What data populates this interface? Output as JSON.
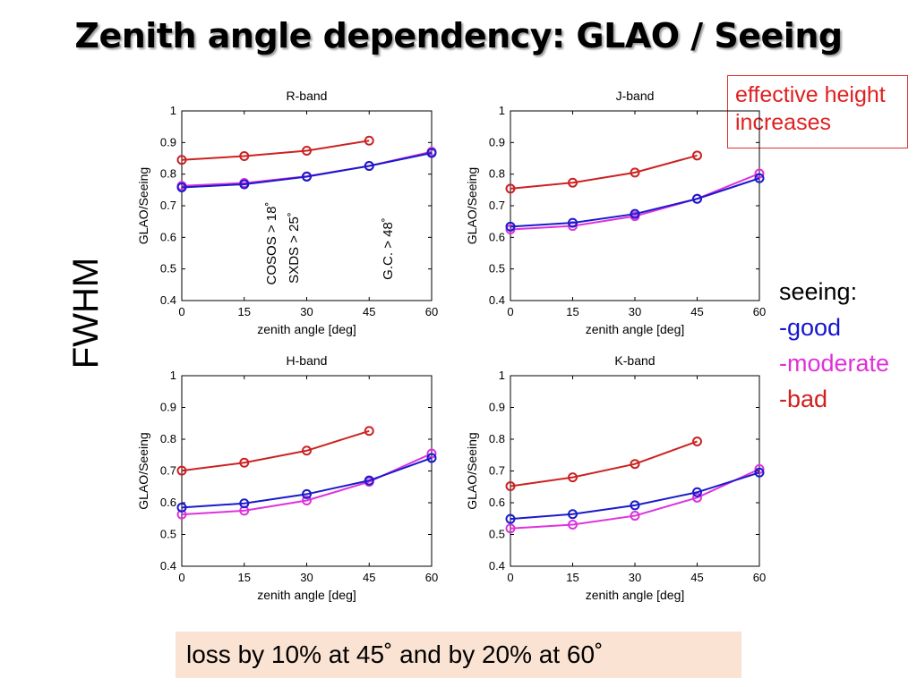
{
  "title": "Zenith angle dependency: GLAO / Seeing",
  "note_box": {
    "line1": "effective height",
    "line2": "increases"
  },
  "side_label": "FWHM",
  "legend": {
    "heading": "seeing:",
    "items": [
      {
        "label": "-good",
        "color": "#1515d0"
      },
      {
        "label": "-moderate",
        "color": "#e030d8"
      },
      {
        "label": "-bad",
        "color": "#d02020"
      }
    ]
  },
  "bottom_note": "loss by 10% at 45˚  and by 20% at 60˚",
  "colors": {
    "good": "#1a1acc",
    "moderate": "#dd33dd",
    "bad": "#cc2222"
  },
  "chart_data": [
    {
      "type": "line",
      "title": "R-band",
      "xlabel": "zenith angle [deg]",
      "ylabel": "GLAO/Seeing",
      "xlim": [
        0,
        60
      ],
      "ylim": [
        0.4,
        1
      ],
      "xticks": [
        0,
        15,
        30,
        45,
        60
      ],
      "yticks": [
        0.4,
        0.5,
        0.6,
        0.7,
        0.8,
        0.9,
        1
      ],
      "grid": false,
      "series": [
        {
          "key": "bad",
          "x": [
            0,
            15,
            30,
            45
          ],
          "values": [
            0.845,
            0.857,
            0.874,
            0.906
          ]
        },
        {
          "key": "moderate",
          "x": [
            0,
            15,
            30,
            45,
            60
          ],
          "values": [
            0.763,
            0.772,
            0.793,
            0.826,
            0.871
          ]
        },
        {
          "key": "good",
          "x": [
            0,
            15,
            30,
            45,
            60
          ],
          "values": [
            0.758,
            0.768,
            0.792,
            0.826,
            0.867
          ]
        }
      ],
      "annotations": [
        "COSOS > 18˚",
        "SXDS > 25˚",
        "G.C. > 48˚"
      ]
    },
    {
      "type": "line",
      "title": "J-band",
      "xlabel": "zenith angle [deg]",
      "ylabel": "GLAO/Seeing",
      "xlim": [
        0,
        60
      ],
      "ylim": [
        0.4,
        1
      ],
      "xticks": [
        0,
        15,
        30,
        45,
        60
      ],
      "yticks": [
        0.4,
        0.5,
        0.6,
        0.7,
        0.8,
        0.9,
        1
      ],
      "grid": false,
      "series": [
        {
          "key": "bad",
          "x": [
            0,
            15,
            30,
            45
          ],
          "values": [
            0.754,
            0.773,
            0.805,
            0.859
          ]
        },
        {
          "key": "moderate",
          "x": [
            0,
            15,
            30,
            45,
            60
          ],
          "values": [
            0.625,
            0.636,
            0.667,
            0.722,
            0.802
          ]
        },
        {
          "key": "good",
          "x": [
            0,
            15,
            30,
            45,
            60
          ],
          "values": [
            0.634,
            0.646,
            0.674,
            0.722,
            0.787
          ]
        }
      ]
    },
    {
      "type": "line",
      "title": "H-band",
      "xlabel": "zenith angle [deg]",
      "ylabel": "GLAO/Seeing",
      "xlim": [
        0,
        60
      ],
      "ylim": [
        0.4,
        1
      ],
      "xticks": [
        0,
        15,
        30,
        45,
        60
      ],
      "yticks": [
        0.4,
        0.5,
        0.6,
        0.7,
        0.8,
        0.9,
        1
      ],
      "grid": false,
      "series": [
        {
          "key": "bad",
          "x": [
            0,
            15,
            30,
            45
          ],
          "values": [
            0.701,
            0.726,
            0.764,
            0.826
          ]
        },
        {
          "key": "moderate",
          "x": [
            0,
            15,
            30,
            45,
            60
          ],
          "values": [
            0.563,
            0.575,
            0.607,
            0.666,
            0.755
          ]
        },
        {
          "key": "good",
          "x": [
            0,
            15,
            30,
            45,
            60
          ],
          "values": [
            0.585,
            0.598,
            0.627,
            0.67,
            0.741
          ]
        }
      ]
    },
    {
      "type": "line",
      "title": "K-band",
      "xlabel": "zenith angle [deg]",
      "ylabel": "GLAO/Seeing",
      "xlim": [
        0,
        60
      ],
      "ylim": [
        0.4,
        1
      ],
      "xticks": [
        0,
        15,
        30,
        45,
        60
      ],
      "yticks": [
        0.4,
        0.5,
        0.6,
        0.7,
        0.8,
        0.9,
        1
      ],
      "grid": false,
      "series": [
        {
          "key": "bad",
          "x": [
            0,
            15,
            30,
            45
          ],
          "values": [
            0.652,
            0.68,
            0.722,
            0.793
          ]
        },
        {
          "key": "moderate",
          "x": [
            0,
            15,
            30,
            45,
            60
          ],
          "values": [
            0.519,
            0.531,
            0.559,
            0.616,
            0.706
          ]
        },
        {
          "key": "good",
          "x": [
            0,
            15,
            30,
            45,
            60
          ],
          "values": [
            0.549,
            0.564,
            0.592,
            0.633,
            0.695
          ]
        }
      ]
    }
  ]
}
